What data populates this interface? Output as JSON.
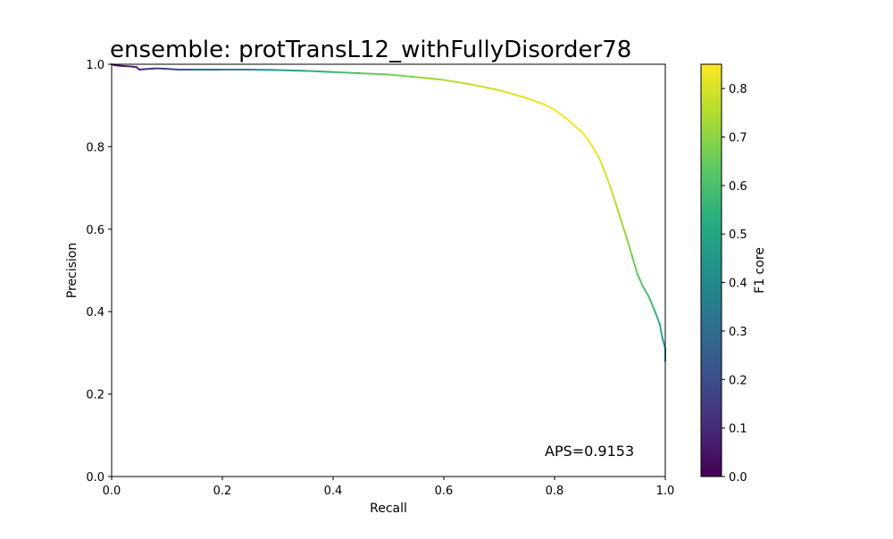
{
  "chart_data": {
    "type": "line",
    "title": "ensemble: protTransL12_withFullyDisorder78",
    "xlabel": "Recall",
    "ylabel": "Precision",
    "xlim": [
      0.0,
      1.0
    ],
    "ylim": [
      0.0,
      1.0
    ],
    "xticks": [
      "0.0",
      "0.2",
      "0.4",
      "0.6",
      "0.8",
      "1.0"
    ],
    "yticks": [
      "0.0",
      "0.2",
      "0.4",
      "0.6",
      "0.8",
      "1.0"
    ],
    "grid": false,
    "annotation": "APS=0.9153",
    "colorbar": {
      "label": "F1 core",
      "range": [
        0.0,
        0.85
      ],
      "ticks": [
        "0.0",
        "0.1",
        "0.2",
        "0.3",
        "0.4",
        "0.5",
        "0.6",
        "0.7",
        "0.8"
      ],
      "colormap": "viridis"
    },
    "series": [
      {
        "x": [
          0.0,
          0.005,
          0.01,
          0.02,
          0.03,
          0.04,
          0.045,
          0.05,
          0.06,
          0.08,
          0.1,
          0.12,
          0.15,
          0.2,
          0.25,
          0.3,
          0.35,
          0.4,
          0.45,
          0.5,
          0.55,
          0.6,
          0.65,
          0.7,
          0.75,
          0.78,
          0.8,
          0.82,
          0.84,
          0.85,
          0.86,
          0.87,
          0.88,
          0.89,
          0.9,
          0.91,
          0.92,
          0.93,
          0.94,
          0.95,
          0.96,
          0.97,
          0.98,
          0.99,
          0.995,
          1.0,
          1.0
        ],
        "y": [
          1.0,
          0.998,
          0.997,
          0.996,
          0.995,
          0.994,
          0.993,
          0.987,
          0.988,
          0.99,
          0.989,
          0.987,
          0.987,
          0.987,
          0.987,
          0.986,
          0.984,
          0.981,
          0.978,
          0.975,
          0.969,
          0.962,
          0.951,
          0.937,
          0.918,
          0.903,
          0.89,
          0.87,
          0.846,
          0.835,
          0.818,
          0.797,
          0.774,
          0.742,
          0.705,
          0.665,
          0.622,
          0.58,
          0.535,
          0.49,
          0.46,
          0.437,
          0.405,
          0.37,
          0.335,
          0.31,
          0.28
        ],
        "f1": [
          0.0,
          0.01,
          0.02,
          0.039,
          0.058,
          0.077,
          0.086,
          0.095,
          0.113,
          0.148,
          0.182,
          0.214,
          0.26,
          0.333,
          0.399,
          0.46,
          0.516,
          0.569,
          0.617,
          0.661,
          0.702,
          0.738,
          0.77,
          0.799,
          0.822,
          0.834,
          0.84,
          0.844,
          0.843,
          0.842,
          0.838,
          0.832,
          0.822,
          0.808,
          0.789,
          0.765,
          0.737,
          0.707,
          0.673,
          0.638,
          0.613,
          0.594,
          0.568,
          0.537,
          0.501,
          0.473,
          0.438
        ]
      }
    ]
  }
}
